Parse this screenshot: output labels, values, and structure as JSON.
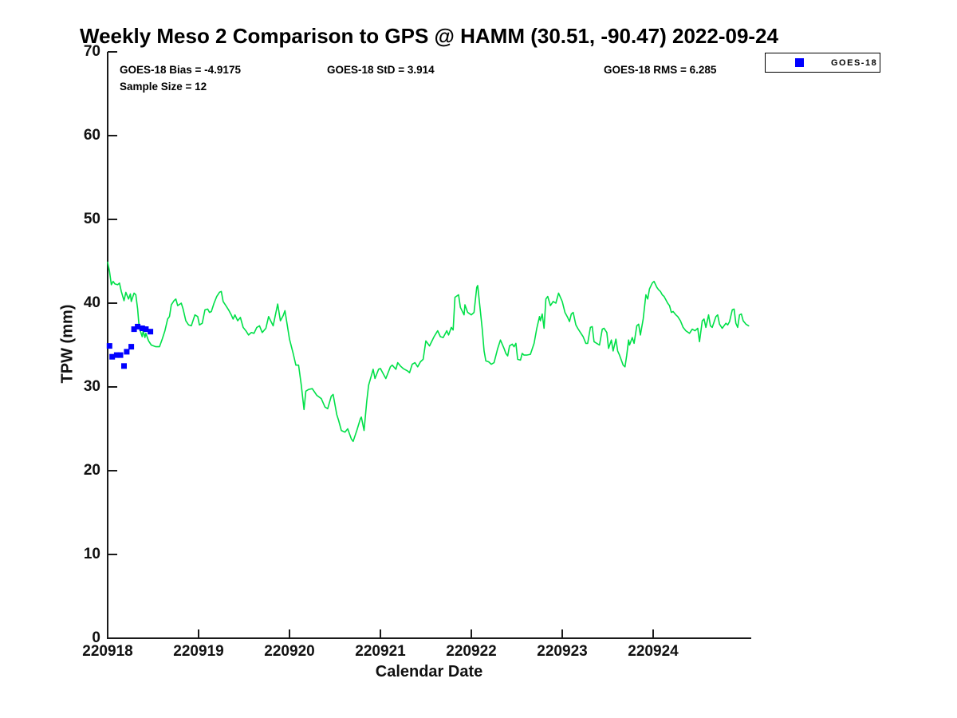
{
  "header": {
    "title": "Weekly Meso 2 Comparison to GPS @ HAMM (30.51, -90.47) 2022-09-24"
  },
  "stats": {
    "bias": "GOES-18 Bias = -4.9175",
    "std": "GOES-18 StD = 3.914",
    "rms": "GOES-18 RMS = 6.285",
    "sample_size": "Sample Size = 12"
  },
  "legend": {
    "position": "top-right",
    "entries": [
      {
        "label": "GOES-18",
        "marker": "square",
        "color": "#0000ff"
      }
    ]
  },
  "axes": {
    "x_label": "Calendar Date",
    "y_label": "TPW (mm)"
  },
  "chart_data": {
    "type": "line",
    "title": "Weekly Meso 2 Comparison to GPS @ HAMM (30.51, -90.47) 2022-09-24",
    "xlabel": "Calendar Date",
    "ylabel": "TPW (mm)",
    "ylim": [
      0,
      70
    ],
    "y_ticks": [
      0,
      10,
      20,
      30,
      40,
      50,
      60,
      70
    ],
    "x_tick_labels": [
      "220918",
      "220919",
      "220920",
      "220921",
      "220922",
      "220923",
      "220924"
    ],
    "x_tick_days": [
      0,
      1,
      2,
      3,
      4,
      5,
      6
    ],
    "xlim_days": [
      0,
      7.08
    ],
    "grid": false,
    "legend_position": "top-right",
    "series": [
      {
        "name": "GPS",
        "type": "line",
        "color": "#00e048",
        "points_day_tpw": [
          [
            0.0,
            44.9
          ],
          [
            0.02,
            43.8
          ],
          [
            0.04,
            42.2
          ],
          [
            0.06,
            42.6
          ],
          [
            0.08,
            42.3
          ],
          [
            0.11,
            42.2
          ],
          [
            0.13,
            42.4
          ],
          [
            0.15,
            41.4
          ],
          [
            0.18,
            40.3
          ],
          [
            0.2,
            41.3
          ],
          [
            0.23,
            40.5
          ],
          [
            0.25,
            41.1
          ],
          [
            0.26,
            40.2
          ],
          [
            0.29,
            41.2
          ],
          [
            0.31,
            41.0
          ],
          [
            0.33,
            39.3
          ],
          [
            0.34,
            37.9
          ],
          [
            0.35,
            37.0
          ],
          [
            0.38,
            36.0
          ],
          [
            0.39,
            36.7
          ],
          [
            0.41,
            35.9
          ],
          [
            0.42,
            36.4
          ],
          [
            0.45,
            35.5
          ],
          [
            0.48,
            35.0
          ],
          [
            0.53,
            34.8
          ],
          [
            0.57,
            34.8
          ],
          [
            0.6,
            35.7
          ],
          [
            0.63,
            36.7
          ],
          [
            0.66,
            38.1
          ],
          [
            0.68,
            38.4
          ],
          [
            0.7,
            39.8
          ],
          [
            0.73,
            40.3
          ],
          [
            0.75,
            40.5
          ],
          [
            0.77,
            39.7
          ],
          [
            0.81,
            40.0
          ],
          [
            0.83,
            39.3
          ],
          [
            0.86,
            37.9
          ],
          [
            0.89,
            37.4
          ],
          [
            0.92,
            37.3
          ],
          [
            0.96,
            38.6
          ],
          [
            0.99,
            38.4
          ],
          [
            1.01,
            37.4
          ],
          [
            1.04,
            37.6
          ],
          [
            1.07,
            39.2
          ],
          [
            1.1,
            39.3
          ],
          [
            1.12,
            38.9
          ],
          [
            1.14,
            39.0
          ],
          [
            1.17,
            40.0
          ],
          [
            1.2,
            40.8
          ],
          [
            1.23,
            41.3
          ],
          [
            1.25,
            41.4
          ],
          [
            1.27,
            40.2
          ],
          [
            1.3,
            39.7
          ],
          [
            1.33,
            39.2
          ],
          [
            1.36,
            38.6
          ],
          [
            1.38,
            38.1
          ],
          [
            1.4,
            38.6
          ],
          [
            1.43,
            37.9
          ],
          [
            1.46,
            38.3
          ],
          [
            1.49,
            37.1
          ],
          [
            1.52,
            36.7
          ],
          [
            1.55,
            36.2
          ],
          [
            1.58,
            36.5
          ],
          [
            1.61,
            36.4
          ],
          [
            1.64,
            37.1
          ],
          [
            1.67,
            37.3
          ],
          [
            1.7,
            36.5
          ],
          [
            1.74,
            37.0
          ],
          [
            1.77,
            38.4
          ],
          [
            1.82,
            37.3
          ],
          [
            1.87,
            39.9
          ],
          [
            1.9,
            37.9
          ],
          [
            1.93,
            38.5
          ],
          [
            1.95,
            39.1
          ],
          [
            2.0,
            35.7
          ],
          [
            2.04,
            34.0
          ],
          [
            2.07,
            32.6
          ],
          [
            2.1,
            32.6
          ],
          [
            2.13,
            30.2
          ],
          [
            2.16,
            27.3
          ],
          [
            2.18,
            29.5
          ],
          [
            2.21,
            29.7
          ],
          [
            2.25,
            29.8
          ],
          [
            2.3,
            29.0
          ],
          [
            2.35,
            28.6
          ],
          [
            2.39,
            27.6
          ],
          [
            2.42,
            27.4
          ],
          [
            2.46,
            28.9
          ],
          [
            2.48,
            29.1
          ],
          [
            2.52,
            26.7
          ],
          [
            2.54,
            26.0
          ],
          [
            2.57,
            24.8
          ],
          [
            2.61,
            24.6
          ],
          [
            2.64,
            25.0
          ],
          [
            2.68,
            23.8
          ],
          [
            2.7,
            23.5
          ],
          [
            2.74,
            24.8
          ],
          [
            2.78,
            26.2
          ],
          [
            2.79,
            26.4
          ],
          [
            2.82,
            24.8
          ],
          [
            2.85,
            28.3
          ],
          [
            2.87,
            30.2
          ],
          [
            2.91,
            31.7
          ],
          [
            2.92,
            32.1
          ],
          [
            2.94,
            31.0
          ],
          [
            2.98,
            32.1
          ],
          [
            3.0,
            32.2
          ],
          [
            3.03,
            31.6
          ],
          [
            3.06,
            31.0
          ],
          [
            3.11,
            32.4
          ],
          [
            3.13,
            32.6
          ],
          [
            3.17,
            32.1
          ],
          [
            3.19,
            32.9
          ],
          [
            3.22,
            32.5
          ],
          [
            3.25,
            32.2
          ],
          [
            3.3,
            31.9
          ],
          [
            3.32,
            31.7
          ],
          [
            3.35,
            32.7
          ],
          [
            3.38,
            32.9
          ],
          [
            3.41,
            32.4
          ],
          [
            3.44,
            33.0
          ],
          [
            3.47,
            33.3
          ],
          [
            3.5,
            35.5
          ],
          [
            3.54,
            34.9
          ],
          [
            3.59,
            36.0
          ],
          [
            3.63,
            36.7
          ],
          [
            3.66,
            36.0
          ],
          [
            3.69,
            35.9
          ],
          [
            3.73,
            36.7
          ],
          [
            3.75,
            36.2
          ],
          [
            3.78,
            37.1
          ],
          [
            3.8,
            36.8
          ],
          [
            3.82,
            40.7
          ],
          [
            3.86,
            41.0
          ],
          [
            3.88,
            39.5
          ],
          [
            3.92,
            38.6
          ],
          [
            3.93,
            39.8
          ],
          [
            3.96,
            38.9
          ],
          [
            4.0,
            38.6
          ],
          [
            4.03,
            38.9
          ],
          [
            4.06,
            41.9
          ],
          [
            4.07,
            42.1
          ],
          [
            4.1,
            39.0
          ],
          [
            4.12,
            36.9
          ],
          [
            4.14,
            34.3
          ],
          [
            4.16,
            33.1
          ],
          [
            4.19,
            33.0
          ],
          [
            4.22,
            32.7
          ],
          [
            4.25,
            32.9
          ],
          [
            4.29,
            34.6
          ],
          [
            4.32,
            35.6
          ],
          [
            4.36,
            34.6
          ],
          [
            4.38,
            34.0
          ],
          [
            4.4,
            33.7
          ],
          [
            4.42,
            34.9
          ],
          [
            4.45,
            35.1
          ],
          [
            4.47,
            34.8
          ],
          [
            4.49,
            35.2
          ],
          [
            4.51,
            33.3
          ],
          [
            4.54,
            33.2
          ],
          [
            4.56,
            34.0
          ],
          [
            4.58,
            33.8
          ],
          [
            4.61,
            33.8
          ],
          [
            4.65,
            33.9
          ],
          [
            4.69,
            35.2
          ],
          [
            4.72,
            37.0
          ],
          [
            4.75,
            38.4
          ],
          [
            4.76,
            37.9
          ],
          [
            4.78,
            38.7
          ],
          [
            4.8,
            37.0
          ],
          [
            4.82,
            40.5
          ],
          [
            4.84,
            40.8
          ],
          [
            4.87,
            39.7
          ],
          [
            4.9,
            40.2
          ],
          [
            4.93,
            40.0
          ],
          [
            4.96,
            41.2
          ],
          [
            5.0,
            40.2
          ],
          [
            5.03,
            38.9
          ],
          [
            5.06,
            38.3
          ],
          [
            5.08,
            37.8
          ],
          [
            5.1,
            38.7
          ],
          [
            5.12,
            38.9
          ],
          [
            5.15,
            37.4
          ],
          [
            5.17,
            37.0
          ],
          [
            5.2,
            36.5
          ],
          [
            5.23,
            36.0
          ],
          [
            5.26,
            35.2
          ],
          [
            5.28,
            35.2
          ],
          [
            5.31,
            37.1
          ],
          [
            5.33,
            37.2
          ],
          [
            5.35,
            35.4
          ],
          [
            5.38,
            35.2
          ],
          [
            5.41,
            35.0
          ],
          [
            5.44,
            36.9
          ],
          [
            5.46,
            37.0
          ],
          [
            5.49,
            36.5
          ],
          [
            5.51,
            34.6
          ],
          [
            5.54,
            35.6
          ],
          [
            5.56,
            34.3
          ],
          [
            5.59,
            35.7
          ],
          [
            5.61,
            34.3
          ],
          [
            5.63,
            33.8
          ],
          [
            5.67,
            32.6
          ],
          [
            5.69,
            32.4
          ],
          [
            5.71,
            33.8
          ],
          [
            5.73,
            35.6
          ],
          [
            5.74,
            35.0
          ],
          [
            5.77,
            35.9
          ],
          [
            5.79,
            35.2
          ],
          [
            5.82,
            37.3
          ],
          [
            5.84,
            37.5
          ],
          [
            5.86,
            36.2
          ],
          [
            5.89,
            38.1
          ],
          [
            5.92,
            41.0
          ],
          [
            5.94,
            40.5
          ],
          [
            5.96,
            41.7
          ],
          [
            5.99,
            42.4
          ],
          [
            6.01,
            42.6
          ],
          [
            6.04,
            41.9
          ],
          [
            6.06,
            41.6
          ],
          [
            6.08,
            41.4
          ],
          [
            6.1,
            41.0
          ],
          [
            6.12,
            40.8
          ],
          [
            6.16,
            40.0
          ],
          [
            6.18,
            39.7
          ],
          [
            6.2,
            38.9
          ],
          [
            6.22,
            39.0
          ],
          [
            6.25,
            38.6
          ],
          [
            6.27,
            38.4
          ],
          [
            6.3,
            37.9
          ],
          [
            6.33,
            37.1
          ],
          [
            6.36,
            36.7
          ],
          [
            6.4,
            36.4
          ],
          [
            6.43,
            36.9
          ],
          [
            6.46,
            36.7
          ],
          [
            6.49,
            37.0
          ],
          [
            6.51,
            35.4
          ],
          [
            6.54,
            37.9
          ],
          [
            6.56,
            38.1
          ],
          [
            6.58,
            37.1
          ],
          [
            6.61,
            38.6
          ],
          [
            6.63,
            37.3
          ],
          [
            6.65,
            37.1
          ],
          [
            6.69,
            38.4
          ],
          [
            6.71,
            38.6
          ],
          [
            6.73,
            37.5
          ],
          [
            6.76,
            37.0
          ],
          [
            6.8,
            37.6
          ],
          [
            6.82,
            37.4
          ],
          [
            6.84,
            37.8
          ],
          [
            6.87,
            39.2
          ],
          [
            6.89,
            39.3
          ],
          [
            6.91,
            37.6
          ],
          [
            6.93,
            37.1
          ],
          [
            6.95,
            38.6
          ],
          [
            6.97,
            38.7
          ],
          [
            6.99,
            37.9
          ],
          [
            7.02,
            37.5
          ],
          [
            7.05,
            37.3
          ]
        ]
      },
      {
        "name": "GOES-18",
        "type": "scatter",
        "marker": "square",
        "color": "#0000ff",
        "points_day_tpw": [
          [
            0.02,
            34.9
          ],
          [
            0.05,
            33.6
          ],
          [
            0.1,
            33.8
          ],
          [
            0.14,
            33.8
          ],
          [
            0.18,
            32.5
          ],
          [
            0.21,
            34.2
          ],
          [
            0.26,
            34.8
          ],
          [
            0.29,
            36.9
          ],
          [
            0.33,
            37.2
          ],
          [
            0.38,
            37.0
          ],
          [
            0.42,
            36.9
          ],
          [
            0.47,
            36.6
          ]
        ]
      }
    ]
  }
}
